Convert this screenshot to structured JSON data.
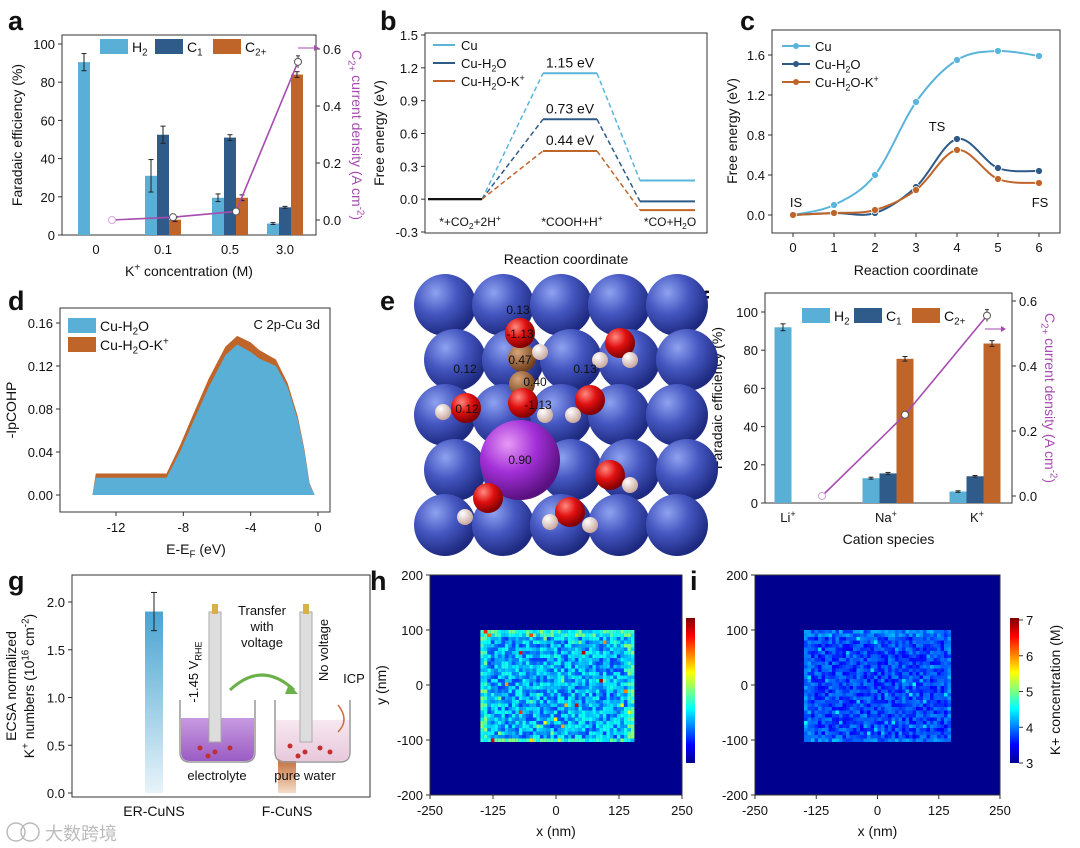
{
  "panel_letters": [
    "a",
    "b",
    "c",
    "d",
    "e",
    "f",
    "g",
    "h",
    "i"
  ],
  "watermark": {
    "text": "大数跨境"
  },
  "structure_e": {
    "charge_labels": [
      "0.13",
      "-1.13",
      "0.47",
      "0.12",
      "0.40",
      "0.13",
      "-1.13",
      "0.12",
      "0.90"
    ]
  },
  "colors": {
    "h2": "#5aafd6",
    "c1": "#2f5b8a",
    "c2": "#c0652a",
    "current": "#a64bb0",
    "cu": "#5ab4dc",
    "cuh2o": "#2e5a88",
    "cuh2ok": "#c0652a"
  },
  "chart_data": [
    {
      "panel": "a",
      "type": "bar",
      "categories": [
        "0",
        "0.1",
        "0.5",
        "3.0"
      ],
      "xlabel": "K^{+} concentration (M)",
      "ylabel": "Faradaic efficiency (%)",
      "y2label": "C_{2+} current density (A cm^{-2})",
      "ylim": [
        0,
        100
      ],
      "y2lim": [
        0,
        0.6
      ],
      "yticks": [
        "0",
        "20",
        "40",
        "60",
        "80",
        "100"
      ],
      "y2ticks": [
        "0.0",
        "0.2",
        "0.4",
        "0.6"
      ],
      "series": [
        {
          "name": "H_{2}",
          "values": [
            90.5,
            31,
            19.5,
            6
          ],
          "err": [
            4.5,
            8.5,
            2,
            0.5
          ]
        },
        {
          "name": "C_{1}",
          "values": [
            null,
            52.5,
            51,
            14.5
          ],
          "err": [
            null,
            4.5,
            1.5,
            0.5
          ]
        },
        {
          "name": "C_{2+}",
          "values": [
            null,
            8,
            19.5,
            84
          ],
          "err": [
            null,
            1,
            1.5,
            1.5
          ]
        }
      ],
      "line": {
        "name": "C2+ current density",
        "values": [
          0,
          0.01,
          0.03,
          0.555
        ],
        "err": [
          0,
          0,
          0,
          0.02
        ]
      }
    },
    {
      "panel": "b",
      "type": "line",
      "states": [
        "*+CO_{2}+2H^{+}",
        "*COOH+H^{+}",
        "*CO+H_{2}O"
      ],
      "xlabel": "Reaction coordinate",
      "ylabel": "Free energy (eV)",
      "ylim": [
        -0.3,
        1.5
      ],
      "yticks": [
        "-0.3",
        "0.0",
        "0.3",
        "0.6",
        "0.9",
        "1.2",
        "1.5"
      ],
      "series": [
        {
          "name": "Cu",
          "values": [
            0,
            1.15,
            0.17
          ]
        },
        {
          "name": "Cu-H_{2}O",
          "values": [
            0,
            0.73,
            -0.02
          ]
        },
        {
          "name": "Cu-H_{2}O-K^{+}",
          "values": [
            0,
            0.44,
            -0.1
          ]
        }
      ],
      "annotations": [
        "1.15 eV",
        "0.73 eV",
        "0.44 eV"
      ]
    },
    {
      "panel": "c",
      "type": "line",
      "x": [
        0,
        1,
        2,
        3,
        4,
        5,
        6
      ],
      "xticks": [
        "0",
        "1",
        "2",
        "3",
        "4",
        "5",
        "6"
      ],
      "xlabel": "Reaction coordinate",
      "ylabel": "Free energy (eV)",
      "ylim": [
        -0.15,
        1.75
      ],
      "yticks": [
        "0.0",
        "0.4",
        "0.8",
        "1.2",
        "1.6"
      ],
      "series": [
        {
          "name": "Cu",
          "values": [
            0,
            0.1,
            0.4,
            1.13,
            1.55,
            1.64,
            1.59
          ]
        },
        {
          "name": "Cu-H_{2}O",
          "values": [
            0,
            0.02,
            0.02,
            0.28,
            0.76,
            0.47,
            0.44
          ]
        },
        {
          "name": "Cu-H_{2}O-K^{+}",
          "values": [
            0,
            0.02,
            0.05,
            0.25,
            0.65,
            0.36,
            0.32
          ]
        }
      ],
      "annotations": [
        "IS",
        "TS",
        "FS"
      ]
    },
    {
      "panel": "d",
      "type": "area",
      "xlabel": "E-E_{F} (eV)",
      "ylabel": "-IpCOHP",
      "xlim": [
        -15.3,
        0.9
      ],
      "ylim": [
        0,
        0.17
      ],
      "xticks": [
        "-12",
        "-8",
        "-4",
        "0"
      ],
      "yticks": [
        "0.00",
        "0.04",
        "0.08",
        "0.12",
        "0.16"
      ],
      "annotation": "C 2p-Cu 3d",
      "x": [
        -13.4,
        -13.2,
        -9,
        -8.2,
        -7.5,
        -6.5,
        -5.5,
        -4.8,
        -4,
        -3.5,
        -2.5,
        -1.8,
        -1.2,
        -0.8,
        -0.5,
        -0.2
      ],
      "series": [
        {
          "name": "Cu-H_{2}O-K^{+}",
          "values": [
            0,
            0.02,
            0.02,
            0.046,
            0.072,
            0.108,
            0.138,
            0.148,
            0.142,
            0.135,
            0.126,
            0.104,
            0.073,
            0.042,
            0.011,
            0
          ]
        },
        {
          "name": "Cu-H_{2}O",
          "values": [
            0,
            0.016,
            0.016,
            0.04,
            0.065,
            0.1,
            0.13,
            0.14,
            0.133,
            0.127,
            0.12,
            0.1,
            0.07,
            0.04,
            0.01,
            0
          ]
        }
      ]
    },
    {
      "panel": "f",
      "type": "bar",
      "categories": [
        "Li^{+}",
        "Na^{+}",
        "K^{+}"
      ],
      "xlabel": "Cation species",
      "ylabel": "Faradaic efficiency (%)",
      "y2label": "C_{2+} current density (A cm^{-2})",
      "ylim": [
        0,
        100
      ],
      "y2lim": [
        0,
        0.6
      ],
      "yticks": [
        "0",
        "20",
        "40",
        "60",
        "80",
        "100"
      ],
      "y2ticks": [
        "0.0",
        "0.2",
        "0.4",
        "0.6"
      ],
      "series": [
        {
          "name": "H_{2}",
          "values": [
            92,
            13,
            6
          ],
          "err": [
            1.8,
            0.5,
            0.4
          ]
        },
        {
          "name": "C_{1}",
          "values": [
            null,
            15.5,
            14
          ],
          "err": [
            null,
            0.5,
            0.4
          ]
        },
        {
          "name": "C_{2+}",
          "values": [
            null,
            75.5,
            83.5
          ],
          "err": [
            null,
            1.2,
            1.5
          ]
        }
      ],
      "line": {
        "name": "C2+ current density",
        "values": [
          0,
          0.25,
          0.555
        ],
        "err": [
          0,
          0,
          0.02
        ]
      }
    },
    {
      "panel": "g",
      "type": "bar",
      "categories": [
        "ER-CuNS",
        "F-CuNS"
      ],
      "values": [
        1.9,
        0.42
      ],
      "err": [
        0.2,
        0.03
      ],
      "ylabel": "ECSA normalized",
      "ylabel2": "K^{+} numbers (10^{16} cm^{-2})",
      "ylim": [
        0,
        2.2
      ],
      "yticks": [
        "0.0",
        "0.5",
        "1.0",
        "1.5",
        "2.0"
      ],
      "annotations": {
        "potential": "-1.45 V_{RHE}",
        "transfer": [
          "Transfer",
          "with",
          "voltage"
        ],
        "no_voltage": "No voltage",
        "icp": "ICP",
        "electrolyte": "electrolyte",
        "pure_water": "pure water"
      }
    },
    {
      "panel": "h",
      "type": "heatmap",
      "xlabel": "x (nm)",
      "ylabel": "y (nm)",
      "xlim": [
        -250,
        250
      ],
      "ylim": [
        -200,
        200
      ],
      "xticks": [
        "-250",
        "-125",
        "0",
        "125",
        "250"
      ],
      "yticks": [
        "-200",
        "-100",
        "0",
        "100",
        "200"
      ],
      "region_x": [
        -150,
        150
      ],
      "region_y": [
        -100,
        100
      ],
      "colorbar_range": [
        3,
        7
      ]
    },
    {
      "panel": "i",
      "type": "heatmap",
      "xlabel": "x (nm)",
      "xlim": [
        -250,
        250
      ],
      "ylim": [
        -200,
        200
      ],
      "xticks": [
        "-250",
        "-125",
        "0",
        "125",
        "250"
      ],
      "yticks": [
        "-200",
        "-100",
        "0",
        "100",
        "200"
      ],
      "region_x": [
        -150,
        150
      ],
      "region_y": [
        -100,
        100
      ],
      "colorbar_range": [
        3,
        7
      ],
      "colorbar_ticks": [
        "3",
        "4",
        "5",
        "6",
        "7"
      ],
      "colorbar_label": "K+ concentration (M)"
    }
  ]
}
